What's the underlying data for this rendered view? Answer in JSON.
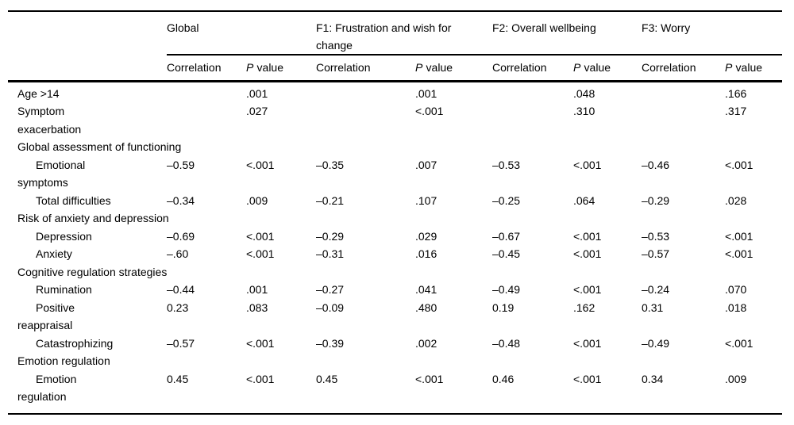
{
  "table": {
    "col_groups": [
      {
        "label": "Global"
      },
      {
        "label": "F1: Frustration and wish for\nchange"
      },
      {
        "label": "F2: Overall wellbeing"
      },
      {
        "label": "F3: Worry"
      }
    ],
    "sub_headers": {
      "correlation": "Correlation",
      "p": "P",
      "value": "value"
    },
    "rows": [
      {
        "label": "Age >14",
        "indent": false,
        "section": false,
        "cells": [
          "",
          ".001",
          "",
          ".001",
          "",
          ".048",
          "",
          ".166"
        ]
      },
      {
        "label": "Symptom\nexacerbation",
        "indent": false,
        "section": false,
        "cells": [
          "",
          ".027",
          "",
          "<.001",
          "",
          ".310",
          "",
          ".317"
        ]
      },
      {
        "label": "Global assessment of functioning",
        "indent": false,
        "section": true,
        "cells": [
          "",
          "",
          "",
          "",
          "",
          "",
          "",
          ""
        ]
      },
      {
        "label": "Emotional\nsymptoms",
        "indent": true,
        "section": false,
        "cells": [
          "–0.59",
          "<.001",
          "–0.35",
          ".007",
          "–0.53",
          "<.001",
          "–0.46",
          "<.001"
        ]
      },
      {
        "label": "Total difficulties",
        "indent": true,
        "section": false,
        "cells": [
          "–0.34",
          ".009",
          "–0.21",
          ".107",
          "–0.25",
          ".064",
          "–0.29",
          ".028"
        ]
      },
      {
        "label": "Risk of anxiety and depression",
        "indent": false,
        "section": true,
        "cells": [
          "",
          "",
          "",
          "",
          "",
          "",
          "",
          ""
        ]
      },
      {
        "label": "Depression",
        "indent": true,
        "section": false,
        "cells": [
          "–0.69",
          "<.001",
          "–0.29",
          ".029",
          "–0.67",
          "<.001",
          "–0.53",
          "<.001"
        ]
      },
      {
        "label": "Anxiety",
        "indent": true,
        "section": false,
        "cells": [
          "–.60",
          "<.001",
          "–0.31",
          ".016",
          "–0.45",
          "<.001",
          "–0.57",
          "<.001"
        ]
      },
      {
        "label": "Cognitive regulation strategies",
        "indent": false,
        "section": true,
        "cells": [
          "",
          "",
          "",
          "",
          "",
          "",
          "",
          ""
        ]
      },
      {
        "label": "Rumination",
        "indent": true,
        "section": false,
        "cells": [
          "–0.44",
          ".001",
          "–0.27",
          ".041",
          "–0.49",
          "<.001",
          "–0.24",
          ".070"
        ]
      },
      {
        "label": "Positive\nreappraisal",
        "indent": true,
        "section": false,
        "cells": [
          "0.23",
          ".083",
          "–0.09",
          ".480",
          "0.19",
          ".162",
          "0.31",
          ".018"
        ]
      },
      {
        "label": "Catastrophizing",
        "indent": true,
        "section": false,
        "cells": [
          "–0.57",
          "<.001",
          "–0.39",
          ".002",
          "–0.48",
          "<.001",
          "–0.49",
          "<.001"
        ]
      },
      {
        "label": "Emotion regulation",
        "indent": false,
        "section": true,
        "cells": [
          "",
          "",
          "",
          "",
          "",
          "",
          "",
          ""
        ]
      },
      {
        "label": "Emotion\nregulation",
        "indent": true,
        "section": false,
        "cells": [
          "0.45",
          "<.001",
          "0.45",
          "<.001",
          "0.46",
          "<.001",
          "0.34",
          ".009"
        ]
      }
    ]
  }
}
